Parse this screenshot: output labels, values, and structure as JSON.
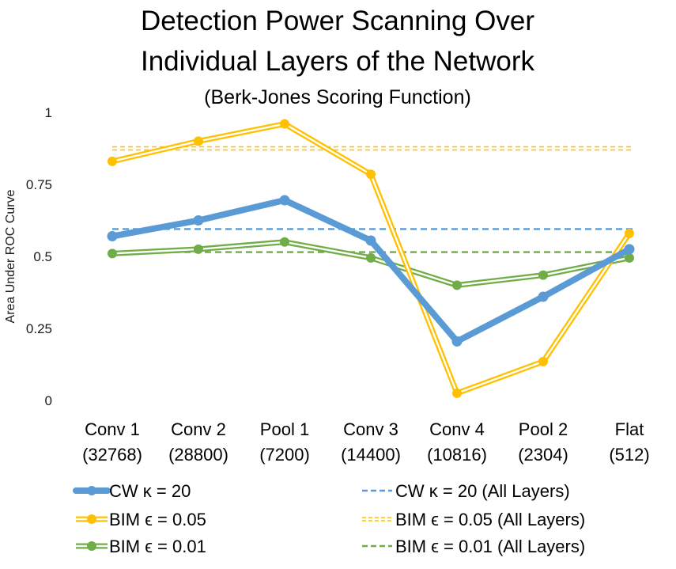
{
  "chart_data": {
    "type": "line",
    "title_lines": [
      "Detection Power Scanning Over",
      "Individual Layers of the Network"
    ],
    "subtitle": "(Berk-Jones Scoring Function)",
    "xlabel": "",
    "ylabel": "Area Under ROC Curve",
    "ylim": [
      0,
      1
    ],
    "yticks": [
      {
        "value": 0,
        "label": "0"
      },
      {
        "value": 0.25,
        "label": "0.25"
      },
      {
        "value": 0.5,
        "label": "0.5"
      },
      {
        "value": 0.75,
        "label": "0.75"
      },
      {
        "value": 1,
        "label": "1"
      }
    ],
    "grid": false,
    "categories": [
      {
        "name": "Conv 1",
        "size": "(32768)"
      },
      {
        "name": "Conv 2",
        "size": "(28800)"
      },
      {
        "name": "Pool 1",
        "size": "(7200)"
      },
      {
        "name": "Conv 3",
        "size": "(14400)"
      },
      {
        "name": "Conv 4",
        "size": "(10816)"
      },
      {
        "name": "Pool 2",
        "size": "(2304)"
      },
      {
        "name": "Flat",
        "size": "(512)"
      }
    ],
    "series": [
      {
        "name": "CW  κ = 20",
        "color": "#5b9bd5",
        "style": "thick",
        "values": [
          0.57,
          0.625,
          0.695,
          0.555,
          0.205,
          0.36,
          0.525
        ]
      },
      {
        "name": "BIM ϵ = 0.05",
        "color": "#ffc000",
        "style": "double",
        "values": [
          0.83,
          0.9,
          0.96,
          0.785,
          0.025,
          0.135,
          0.58
        ]
      },
      {
        "name": "BIM ϵ = 0.01",
        "color": "#70ad47",
        "style": "double",
        "values": [
          0.51,
          0.525,
          0.55,
          0.495,
          0.4,
          0.435,
          0.495
        ]
      }
    ],
    "reference_lines": [
      {
        "name": "CW  κ = 20    (All Layers)",
        "color": "#5b9bd5",
        "style": "dashed",
        "value": 0.595
      },
      {
        "name": "BIM ϵ = 0.05 (All Layers)",
        "color": "#ffc000",
        "style": "double-dashed",
        "value": 0.875
      },
      {
        "name": "BIM ϵ = 0.01 (All Layers)",
        "color": "#70ad47",
        "style": "dashed",
        "value": 0.515
      }
    ],
    "legend_position": "bottom"
  }
}
